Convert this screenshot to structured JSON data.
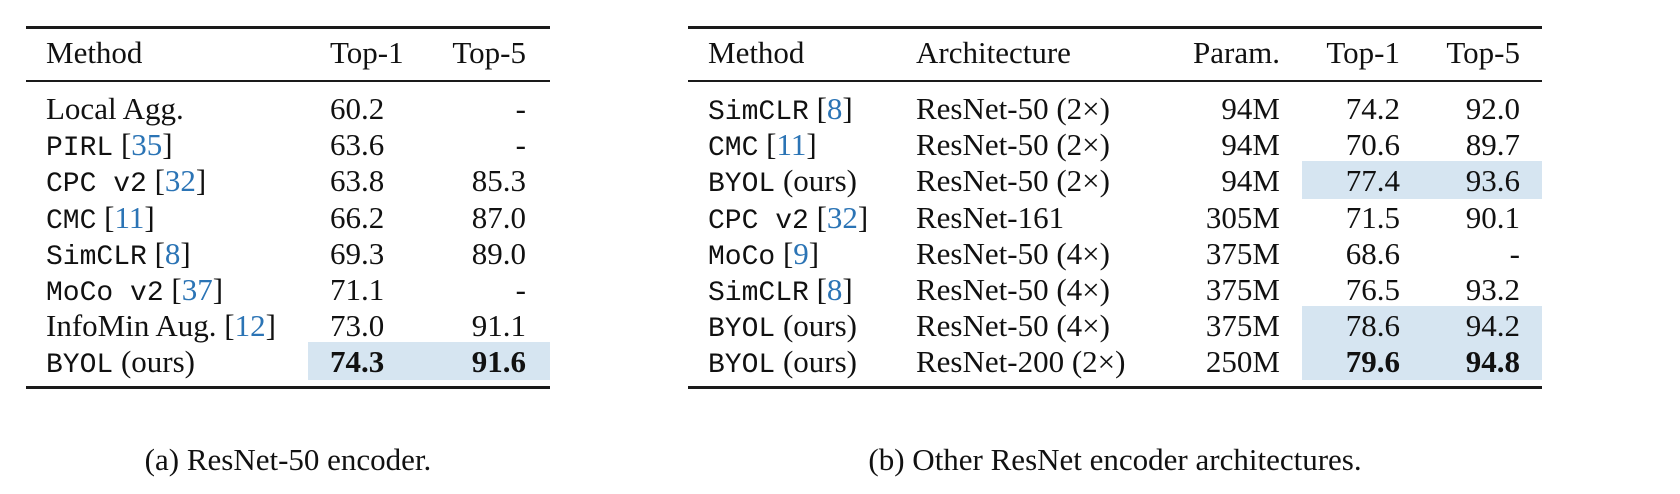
{
  "table_a": {
    "headers": [
      "Method",
      "Top-1",
      "Top-5"
    ],
    "rows": [
      {
        "name": "Local Agg.",
        "mono": false,
        "cite": "",
        "suffix": "",
        "top1": "60.2",
        "top5": "-",
        "highlight": false,
        "bold": false
      },
      {
        "name": "PIRL",
        "mono": true,
        "cite": "35",
        "suffix": "",
        "top1": "63.6",
        "top5": "-",
        "highlight": false,
        "bold": false
      },
      {
        "name": "CPC v2",
        "mono": true,
        "cite": "32",
        "suffix": "",
        "top1": "63.8",
        "top5": "85.3",
        "highlight": false,
        "bold": false
      },
      {
        "name": "CMC",
        "mono": true,
        "cite": "11",
        "suffix": "",
        "top1": "66.2",
        "top5": "87.0",
        "highlight": false,
        "bold": false
      },
      {
        "name": "SimCLR",
        "mono": true,
        "cite": "8",
        "suffix": "",
        "top1": "69.3",
        "top5": "89.0",
        "highlight": false,
        "bold": false
      },
      {
        "name": "MoCo v2",
        "mono": true,
        "cite": "37",
        "suffix": "",
        "top1": "71.1",
        "top5": "-",
        "highlight": false,
        "bold": false
      },
      {
        "name": "InfoMin Aug.",
        "mono": false,
        "cite": "12",
        "suffix": "",
        "top1": "73.0",
        "top5": "91.1",
        "highlight": false,
        "bold": false
      },
      {
        "name": "BYOL",
        "mono": true,
        "cite": "",
        "suffix": "(ours)",
        "top1": "74.3",
        "top5": "91.6",
        "highlight": true,
        "bold": true
      }
    ],
    "caption": "(a) ResNet-50 encoder."
  },
  "table_b": {
    "headers": [
      "Method",
      "Architecture",
      "Param.",
      "Top-1",
      "Top-5"
    ],
    "rows": [
      {
        "name": "SimCLR",
        "mono": true,
        "cite": "8",
        "suffix": "",
        "arch": "ResNet-50 (2×)",
        "param": "94M",
        "top1": "74.2",
        "top5": "92.0",
        "highlight": false,
        "bold": false
      },
      {
        "name": "CMC",
        "mono": true,
        "cite": "11",
        "suffix": "",
        "arch": "ResNet-50 (2×)",
        "param": "94M",
        "top1": "70.6",
        "top5": "89.7",
        "highlight": false,
        "bold": false
      },
      {
        "name": "BYOL",
        "mono": true,
        "cite": "",
        "suffix": "(ours)",
        "arch": "ResNet-50 (2×)",
        "param": "94M",
        "top1": "77.4",
        "top5": "93.6",
        "highlight": true,
        "bold": false
      },
      {
        "name": "CPC v2",
        "mono": true,
        "cite": "32",
        "suffix": "",
        "arch": "ResNet-161",
        "param": "305M",
        "top1": "71.5",
        "top5": "90.1",
        "highlight": false,
        "bold": false
      },
      {
        "name": "MoCo",
        "mono": true,
        "cite": "9",
        "suffix": "",
        "arch": "ResNet-50 (4×)",
        "param": "375M",
        "top1": "68.6",
        "top5": "-",
        "highlight": false,
        "bold": false
      },
      {
        "name": "SimCLR",
        "mono": true,
        "cite": "8",
        "suffix": "",
        "arch": "ResNet-50 (4×)",
        "param": "375M",
        "top1": "76.5",
        "top5": "93.2",
        "highlight": false,
        "bold": false
      },
      {
        "name": "BYOL",
        "mono": true,
        "cite": "",
        "suffix": "(ours)",
        "arch": "ResNet-50 (4×)",
        "param": "375M",
        "top1": "78.6",
        "top5": "94.2",
        "highlight": true,
        "bold": false
      },
      {
        "name": "BYOL",
        "mono": true,
        "cite": "",
        "suffix": "(ours)",
        "arch": "ResNet-200 (2×)",
        "param": "250M",
        "top1": "79.6",
        "top5": "94.8",
        "highlight": true,
        "bold": true
      }
    ],
    "caption": "(b) Other ResNet encoder architectures."
  },
  "colors": {
    "highlight": "#d6e5f1",
    "citation": "#2b74b5"
  }
}
